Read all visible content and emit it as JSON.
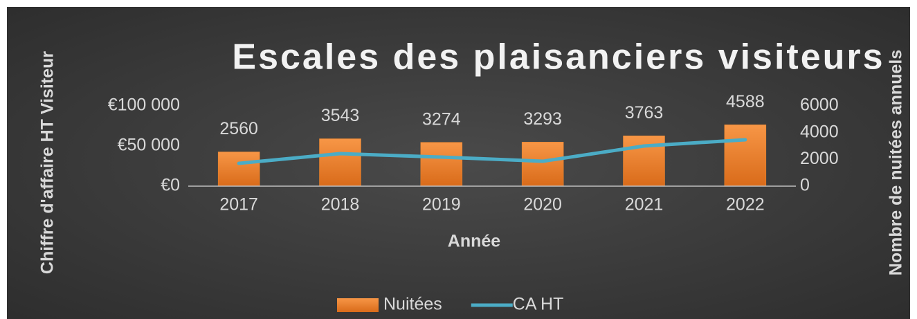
{
  "chart_data": {
    "type": "bar-line",
    "title": "Escales des plaisanciers visiteurs",
    "xlabel": "Année",
    "ylabel": "Chiffre d'affaire HT Visiteur",
    "y2label": "Nombre de nuitées annuels",
    "categories": [
      "2017",
      "2018",
      "2019",
      "2020",
      "2021",
      "2022"
    ],
    "series": [
      {
        "name": "Nuitées",
        "type": "bar",
        "axis": "y2",
        "color": "#f0882c",
        "values": [
          2560,
          3543,
          3274,
          3293,
          3763,
          4588
        ]
      },
      {
        "name": "CA HT",
        "type": "line",
        "axis": "y",
        "color": "#4bacc6",
        "values": [
          28400,
          40500,
          36200,
          31000,
          50000,
          57800
        ]
      }
    ],
    "ylim": [
      0,
      100000
    ],
    "yticks": [
      {
        "value": 0,
        "label": "€0"
      },
      {
        "value": 50000,
        "label": "€50 000"
      },
      {
        "value": 100000,
        "label": "€100 000"
      }
    ],
    "y2lim": [
      0,
      6000
    ],
    "y2ticks": [
      0,
      2000,
      4000,
      6000
    ],
    "legend": "bottom"
  }
}
